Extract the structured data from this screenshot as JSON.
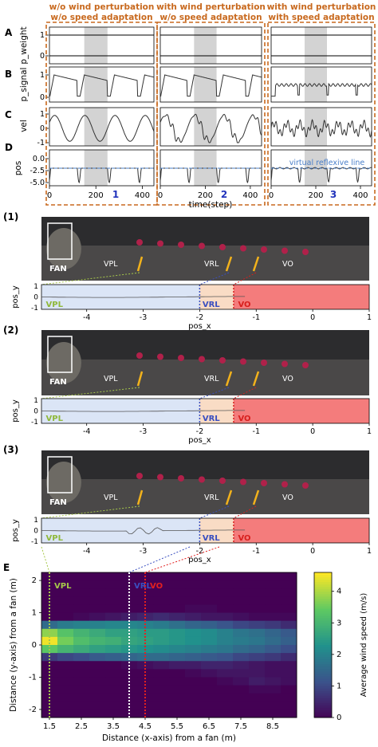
{
  "top": {
    "col_titles": [
      "w/o wind perturbation\nw/o speed adaptation",
      "with wind perturbation\nw/o speed adaptation",
      "with wind perturbation\nwith speed adaptation"
    ],
    "row_letters": [
      "A",
      "B",
      "C",
      "D"
    ],
    "ylabels": [
      "p_weight",
      "p_signal",
      "vel",
      "pos"
    ],
    "yticks": {
      "A": [
        "1",
        "0"
      ],
      "B": [
        "1",
        "0"
      ],
      "C": [
        "1",
        "0",
        "-1"
      ],
      "D": [
        "0.0",
        "-2.5",
        "-5.0"
      ]
    },
    "xticks": [
      "0",
      "200",
      "400"
    ],
    "xlabel": "time(step)",
    "panel_numbers": [
      "1",
      "2",
      "3"
    ],
    "reflexive_label": "virtual reflexive line",
    "colors": {
      "box": "#c8691e",
      "number": "#2233bb",
      "shade": "#d3d3d3",
      "dashed": "#4a7fc9",
      "trace": "#333333"
    }
  },
  "chart_data": [
    {
      "type": "line",
      "panel": "A-D time series",
      "x_range": [
        0,
        450
      ],
      "shaded_interval": [
        150,
        250
      ],
      "series": [
        {
          "row": "p_weight",
          "values_col1": "1 constant",
          "values_col2": "1 constant",
          "values_col3": "1 constant"
        },
        {
          "row": "p_signal",
          "peaks_at": [
            30,
            150,
            290,
            420
          ]
        },
        {
          "row": "vel",
          "range": [
            -1,
            1
          ]
        },
        {
          "row": "pos",
          "range": [
            -5,
            0
          ],
          "reflexive_line": -2.0
        }
      ]
    },
    {
      "type": "line",
      "panel": "trajectories 1-3",
      "x_range": [
        -4.8,
        1
      ],
      "y_range": [
        -1,
        1
      ],
      "regions": [
        {
          "name": "VPL",
          "x": [
            -4.8,
            -2
          ],
          "color": "#dbe5f6"
        },
        {
          "name": "VRL",
          "x": [
            -2,
            -1.4
          ],
          "color": "#f9dcc5"
        },
        {
          "name": "VO",
          "x": [
            -1.4,
            1
          ],
          "color": "#f47c7c"
        }
      ]
    },
    {
      "type": "heatmap",
      "panel": "E",
      "x_range": [
        1.25,
        9.25
      ],
      "y_range": [
        -2.25,
        2.25
      ],
      "rows": [
        [
          0,
          0,
          0,
          0,
          0,
          0,
          0,
          0,
          0,
          0,
          0,
          0,
          0,
          0,
          0,
          0
        ],
        [
          0,
          0,
          0,
          0,
          0,
          0,
          0,
          0,
          0,
          0,
          0,
          0,
          0,
          0,
          0,
          0
        ],
        [
          0,
          0,
          0,
          0,
          0,
          0,
          0,
          0,
          0,
          0,
          0,
          0,
          0,
          0,
          0,
          0
        ],
        [
          0,
          0,
          0,
          0,
          0,
          0,
          0,
          0,
          0,
          0,
          0,
          0,
          0,
          0,
          0,
          0
        ],
        [
          0,
          0,
          0,
          0,
          0,
          0,
          0,
          0,
          0,
          0.1,
          0.1,
          0,
          0,
          0,
          0,
          0
        ],
        [
          0,
          0,
          0.1,
          0.2,
          0.3,
          0.4,
          0.5,
          0.6,
          0.5,
          0.4,
          0.3,
          0.3,
          0.2,
          0.1,
          0.1,
          0.1
        ],
        [
          1.6,
          1.9,
          2.0,
          2.0,
          2.1,
          2.1,
          2.0,
          1.9,
          1.7,
          1.5,
          1.4,
          1.2,
          1.0,
          0.9,
          0.8,
          0.6
        ],
        [
          3.8,
          3.3,
          3.0,
          2.8,
          2.6,
          2.6,
          2.5,
          2.5,
          2.4,
          2.3,
          2.2,
          2.0,
          1.8,
          1.7,
          1.5,
          1.3
        ],
        [
          4.5,
          3.6,
          3.2,
          3.0,
          2.9,
          2.7,
          2.6,
          2.5,
          2.4,
          2.3,
          2.2,
          2.0,
          1.9,
          1.8,
          1.6,
          1.4
        ],
        [
          3.4,
          3.0,
          2.8,
          2.6,
          2.5,
          2.4,
          2.3,
          2.2,
          2.1,
          2.0,
          1.9,
          1.8,
          1.6,
          1.5,
          1.3,
          1.1
        ],
        [
          0.8,
          1.0,
          1.1,
          1.3,
          1.4,
          1.5,
          1.6,
          1.6,
          1.5,
          1.4,
          1.3,
          1.2,
          1.0,
          0.9,
          0.8,
          0.6
        ],
        [
          0,
          0,
          0,
          0,
          0,
          0.1,
          0.2,
          0.3,
          0.4,
          0.4,
          0.5,
          0.5,
          0.4,
          0.3,
          0.2,
          0.2
        ],
        [
          0,
          0,
          0,
          0,
          0,
          0,
          0,
          0,
          0,
          0.1,
          0.2,
          0.3,
          0.3,
          0.3,
          0.2,
          0.2
        ],
        [
          0,
          0,
          0,
          0,
          0,
          0,
          0,
          0,
          0,
          0,
          0,
          0.1,
          0.2,
          0.4,
          0.3,
          0.2
        ],
        [
          0,
          0,
          0,
          0,
          0,
          0,
          0,
          0,
          0,
          0,
          0,
          0,
          0,
          0.1,
          0.1,
          0
        ],
        [
          0,
          0,
          0,
          0,
          0,
          0,
          0,
          0,
          0,
          0,
          0,
          0,
          0,
          0,
          0,
          0
        ],
        [
          0,
          0,
          0,
          0,
          0,
          0,
          0,
          0,
          0,
          0,
          0,
          0,
          0,
          0,
          0,
          0
        ],
        [
          0,
          0,
          0,
          0,
          0,
          0,
          0,
          0,
          0,
          0,
          0,
          0,
          0,
          0,
          0,
          0
        ]
      ],
      "xlabel": "Distance (x-axis) from a fan (m)",
      "ylabel": "Distance (y-axis) from a fan (m)",
      "xticks": [
        "1.5",
        "2.5",
        "3.5",
        "4.5",
        "5.5",
        "6.5",
        "7.5",
        "8.5"
      ],
      "yticks": [
        "2",
        "1",
        "0",
        "-1",
        "-2"
      ],
      "vlines": [
        {
          "label": "VPL",
          "x": 1.5,
          "color": "#a6c84a"
        },
        {
          "label": "VRL",
          "x": 4.0,
          "color": "#ffffff"
        },
        {
          "label": "VO",
          "x": 4.5,
          "color": "#e32020"
        }
      ],
      "colorbar": {
        "label": "Average wind speed (m/s)",
        "ticks": [
          "4",
          "3",
          "2",
          "1",
          "0"
        ],
        "range": [
          0,
          4.6
        ]
      }
    }
  ],
  "trajectories": {
    "labels": [
      "(1)",
      "(2)",
      "(3)"
    ],
    "photo_labels": {
      "fan": "FAN",
      "vpl": "VPL",
      "vrl": "VRL",
      "vo": "VO"
    },
    "ylabel": "pos_y",
    "xlabel": "pos_x",
    "xticks": [
      "-4",
      "-3",
      "-2",
      "-1",
      "0",
      "1"
    ],
    "yticks": [
      "1",
      "0",
      "-1"
    ],
    "region_labels": [
      "VPL",
      "VRL",
      "VO"
    ]
  },
  "heat_label": "E"
}
